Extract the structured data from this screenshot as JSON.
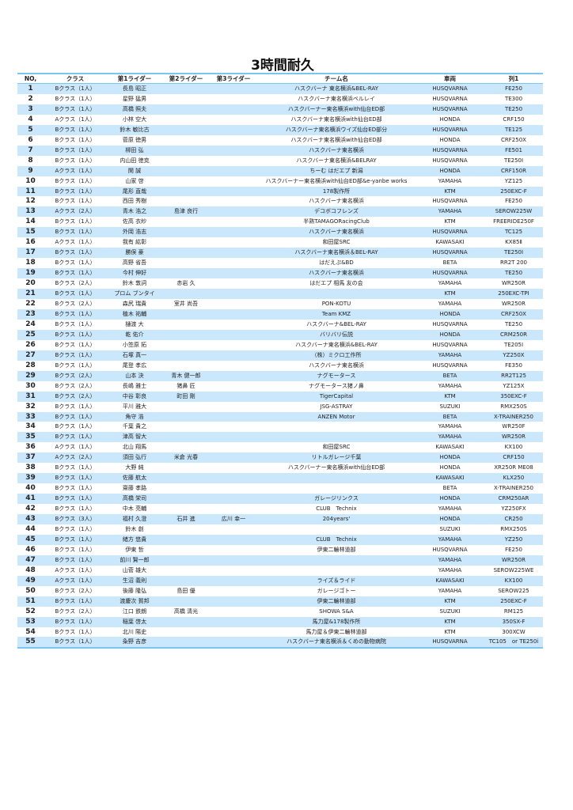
{
  "title": "3時間耐久",
  "headers": [
    "NO,",
    "クラス",
    "第1ライダー",
    "第2ライダー",
    "第3ライダー",
    "チーム名",
    "車両",
    "列1"
  ],
  "rows": [
    [
      "1",
      "Bクラス（1人）",
      "長島 昭正",
      "",
      "",
      "ハスクバーナ 東名横浜&BEL-RAY",
      "HUSQVARNA",
      "FE250"
    ],
    [
      "2",
      "Bクラス（1人）",
      "星野 猛男",
      "",
      "",
      "ハスクバーナ東名横浜ベルレイ",
      "HUSQVARNA",
      "TE300"
    ],
    [
      "3",
      "Bクラス（1人）",
      "高橋 照夫",
      "",
      "",
      "ハスクバーナー東名横浜with仙台ED部",
      "HUSQVARNA",
      "TE250"
    ],
    [
      "4",
      "Aクラス（1人）",
      "小林 空大",
      "",
      "",
      "ハスクバーナ東名横浜with仙台ED部",
      "HONDA",
      "CRF150"
    ],
    [
      "5",
      "Bクラス（1人）",
      "鈴木 敏比古",
      "",
      "",
      "ハスクバーナ東名横浜ウイズ仙台ED部分",
      "HUSQVARNA",
      "TE125"
    ],
    [
      "6",
      "Bクラス（1人）",
      "菅原 徳男",
      "",
      "",
      "ハスクバーナ東名横浜with仙台ED部",
      "HONDA",
      "CRF250X"
    ],
    [
      "7",
      "Bクラス（1人）",
      "柳田 弘",
      "",
      "",
      "ハスクバーナ東名横浜",
      "HUSQVARNA",
      "FE501"
    ],
    [
      "8",
      "Bクラス（1人）",
      "内山田 徳克",
      "",
      "",
      "ハスクバーナ東名横浜&BELRAY",
      "HUSQVARNA",
      "TE250I"
    ],
    [
      "9",
      "Aクラス（1人）",
      "関 誠",
      "",
      "",
      "ちーむ はだエプ 新潟",
      "HONDA",
      "CRF150R"
    ],
    [
      "10",
      "Bクラス（1人）",
      "山家 啓",
      "",
      "",
      "ハスクバーナー東名横浜with仙台ED部&e-yanbe works",
      "YAMAHA",
      "YZ125"
    ],
    [
      "11",
      "Bクラス（1人）",
      "尾形 直哉",
      "",
      "",
      "178製作所",
      "KTM",
      "250EXC-F"
    ],
    [
      "12",
      "Bクラス（1人）",
      "西田 秀樹",
      "",
      "",
      "ハスクバーナ東名横浜",
      "HUSQVARNA",
      "FE250"
    ],
    [
      "13",
      "Aクラス（2人）",
      "青木 浩之",
      "島津 良行",
      "",
      "デコボコフレンズ",
      "YAMAHA",
      "SEROW225W"
    ],
    [
      "14",
      "Bクラス（1人）",
      "佐高 衣紗",
      "",
      "",
      "半熟TAMAGORacingClub",
      "KTM",
      "FREERIDE250F"
    ],
    [
      "15",
      "Bクラス（1人）",
      "外岡 浩志",
      "",
      "",
      "ハスクバーナ東名横浜",
      "HUSQVARNA",
      "TC125"
    ],
    [
      "16",
      "Aクラス（1人）",
      "我有 紘彰",
      "",
      "",
      "和田屋SRC",
      "KAWASAKI",
      "KX85Ⅱ"
    ],
    [
      "17",
      "Bクラス（1人）",
      "勝俣 豪",
      "",
      "",
      "ハスクバーナ東名横浜＆BEL-RAY",
      "HUSQVARNA",
      "TE250I"
    ],
    [
      "18",
      "Bクラス（1人）",
      "高野 省吾",
      "",
      "",
      "はだえぷ&BD",
      "BETA",
      "RR2T 200"
    ],
    [
      "19",
      "Bクラス（1人）",
      "今村 伸好",
      "",
      "",
      "ハスクバーナ東名横浜",
      "HUSQVARNA",
      "TE250"
    ],
    [
      "20",
      "Bクラス（2人）",
      "鈴木 敦詞",
      "赤岩 久",
      "",
      "はだエプ 相馬 友の会",
      "YAMAHA",
      "WR250R"
    ],
    [
      "21",
      "Bクラス（1人）",
      "プロム ブンタイ",
      "",
      "",
      "",
      "KTM",
      "250EXC-TPI"
    ],
    [
      "22",
      "Bクラス（2人）",
      "森尻 瑞貴",
      "室井 尚吾",
      "",
      "PON-KOTU",
      "YAMAHA",
      "WR250R"
    ],
    [
      "23",
      "Bクラス（1人）",
      "植木 祐輔",
      "",
      "",
      "Team KMZ",
      "HONDA",
      "CRF250X"
    ],
    [
      "24",
      "Bクラス（1人）",
      "樋渡 大",
      "",
      "",
      "ハスクバーナ&BEL-RAY",
      "HUSQVARNA",
      "TE250"
    ],
    [
      "25",
      "Bクラス（1人）",
      "乾 佑介",
      "",
      "",
      "バリバリ伝説",
      "HONDA",
      "CRM250R"
    ],
    [
      "26",
      "Bクラス（1人）",
      "小笠原 拓",
      "",
      "",
      "ハスクバーナ東名横浜&BEL-RAY",
      "HUSQVARNA",
      "TE205I"
    ],
    [
      "27",
      "Bクラス（1人）",
      "石塚 真一",
      "",
      "",
      "（株）ミクロ工作所",
      "YAMAHA",
      "YZ250X"
    ],
    [
      "28",
      "Bクラス（1人）",
      "尾登 孝広",
      "",
      "",
      "ハスクバーナ東名横浜",
      "HUSQVARNA",
      "FE350"
    ],
    [
      "29",
      "Bクラス（2人）",
      "山本 決",
      "青木 健一郎",
      "",
      "ナグモータース",
      "BETA",
      "RR2T125"
    ],
    [
      "30",
      "Bクラス（2人）",
      "長嶋 雅士",
      "猪鼻 匠",
      "",
      "ナグモータース猪ノ鼻",
      "YAMAHA",
      "YZ125X"
    ],
    [
      "31",
      "Bクラス（2人）",
      "中谷 彰良",
      "町田 剛",
      "",
      "TigerCapital",
      "KTM",
      "350EXC-F"
    ],
    [
      "32",
      "Bクラス（1人）",
      "平川 雅大",
      "",
      "",
      "JSG-ASTRAY",
      "SUZUKI",
      "RMX250S"
    ],
    [
      "33",
      "Bクラス（1人）",
      "角守 浩",
      "",
      "",
      "ANZEN Motor",
      "BETA",
      "X-TRAINER250"
    ],
    [
      "34",
      "Bクラス（1人）",
      "千葉 貴之",
      "",
      "",
      "",
      "YAMAHA",
      "WR250F"
    ],
    [
      "35",
      "Bクラス（1人）",
      "津高 智大",
      "",
      "",
      "",
      "YAMAHA",
      "WR250R"
    ],
    [
      "36",
      "Aクラス（1人）",
      "北山 翔馬",
      "",
      "",
      "和田屋SRC",
      "KAWASAKI",
      "KX100"
    ],
    [
      "37",
      "Aクラス（2人）",
      "須田 弘行",
      "米倉 光春",
      "",
      "リトルガレージ千葉",
      "HONDA",
      "CRF150"
    ],
    [
      "38",
      "Bクラス（1人）",
      "大野 純",
      "",
      "",
      "ハスクバーナー東名横浜with仙台ED部",
      "HONDA",
      "XR250R ME08"
    ],
    [
      "39",
      "Bクラス（1人）",
      "佐藤 航太",
      "",
      "",
      "",
      "KAWASAKI",
      "KLX250"
    ],
    [
      "40",
      "Bクラス（1人）",
      "齋藤 孝路",
      "",
      "",
      "",
      "BETA",
      "X-TRAINER250"
    ],
    [
      "41",
      "Bクラス（1人）",
      "高橋 栄司",
      "",
      "",
      "ガレージリンクス",
      "HONDA",
      "CRM250AR"
    ],
    [
      "42",
      "Bクラス（1人）",
      "中木 亮輔",
      "",
      "",
      "CLUB　Technix",
      "YAMAHA",
      "YZ250FX"
    ],
    [
      "43",
      "Bクラス（3人）",
      "福村 久澄",
      "石井 進",
      "広川 幸一",
      "204years'",
      "HONDA",
      "CR250"
    ],
    [
      "44",
      "Bクラス（1人）",
      "鈴木 創",
      "",
      "",
      "",
      "SUZUKI",
      "RMX250S"
    ],
    [
      "45",
      "Bクラス（1人）",
      "緒方 悠貴",
      "",
      "",
      "CLUB　Technix",
      "YAMAHA",
      "YZ250"
    ],
    [
      "46",
      "Bクラス（1人）",
      "伊東 哲",
      "",
      "",
      "伊東二輪林道部",
      "HUSQVARNA",
      "FE250"
    ],
    [
      "47",
      "Bクラス（1人）",
      "前川 賢一郎",
      "",
      "",
      "",
      "YAMAHA",
      "WR250R"
    ],
    [
      "48",
      "Aクラス（1人）",
      "山菅 雄大",
      "",
      "",
      "",
      "YAMAHA",
      "SEROW225WE"
    ],
    [
      "49",
      "Aクラス（1人）",
      "生沼 義則",
      "",
      "",
      "ライズ＆ライド",
      "KAWASAKI",
      "KX100"
    ],
    [
      "50",
      "Bクラス（2人）",
      "後藤 隆弘",
      "島田 優",
      "",
      "ガレージゴトー",
      "YAMAHA",
      "SEROW225"
    ],
    [
      "51",
      "Bクラス（1人）",
      "渡慶次 賀邦",
      "",
      "",
      "伊東二輪林道部",
      "KTM",
      "250EXC-F"
    ],
    [
      "52",
      "Bクラス（2人）",
      "江口 鉄朗",
      "高橋 清光",
      "",
      "SHOWA S&A",
      "SUZUKI",
      "RM125"
    ],
    [
      "53",
      "Bクラス（1人）",
      "稲葉 啓太",
      "",
      "",
      "馬力屋&178製作所",
      "KTM",
      "350SX-F"
    ],
    [
      "54",
      "Bクラス（1人）",
      "北川 陽史",
      "",
      "",
      "馬力屋＆伊東二輪林道部",
      "KTM",
      "300XCW"
    ],
    [
      "55",
      "Bクラス（1人）",
      "粂野 吉彦",
      "",
      "",
      "ハスクバーナ東名横浜＆くめの動物病院",
      "HUSQVARNA",
      "TC105　or TE250i"
    ]
  ]
}
